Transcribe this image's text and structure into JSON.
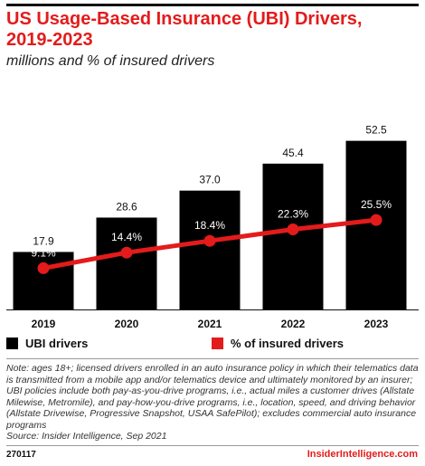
{
  "header": {
    "title": "US Usage-Based Insurance (UBI) Drivers, 2019-2023",
    "subtitle": "millions and % of insured drivers"
  },
  "chart_data": {
    "type": "bar",
    "categories": [
      "2019",
      "2020",
      "2021",
      "2022",
      "2023"
    ],
    "series": [
      {
        "name": "UBI drivers",
        "kind": "bar",
        "values": [
          17.9,
          28.6,
          37.0,
          45.4,
          52.5
        ],
        "labels": [
          "17.9",
          "28.6",
          "37.0",
          "45.4",
          "52.5"
        ],
        "color": "#000000"
      },
      {
        "name": "% of insured drivers",
        "kind": "line",
        "values": [
          9.1,
          14.4,
          18.4,
          22.3,
          25.5
        ],
        "labels": [
          "9.1%",
          "14.4%",
          "18.4%",
          "22.3%",
          "25.5%"
        ],
        "color": "#e41b1b"
      }
    ],
    "legend_position": "bottom-left",
    "grid": false
  },
  "notes": {
    "text": "Note: ages 18+; licensed drivers enrolled in an auto insurance policy in which their telematics data is transmitted from a mobile app and/or telematics device and ultimately monitored by an insurer; UBI policies include both pay-as-you-drive programs, i.e., actual miles a customer drives (Allstate Milewise, Metromile), and pay-how-you-drive programs, i.e., location, speed, and driving behavior (Allstate Drivewise, Progressive Snapshot, USAA SafePilot); excludes commercial auto insurance programs",
    "source": "Source: Insider Intelligence, Sep 2021"
  },
  "footer": {
    "chart_id": "270117",
    "brand": "InsiderIntelligence.com"
  }
}
